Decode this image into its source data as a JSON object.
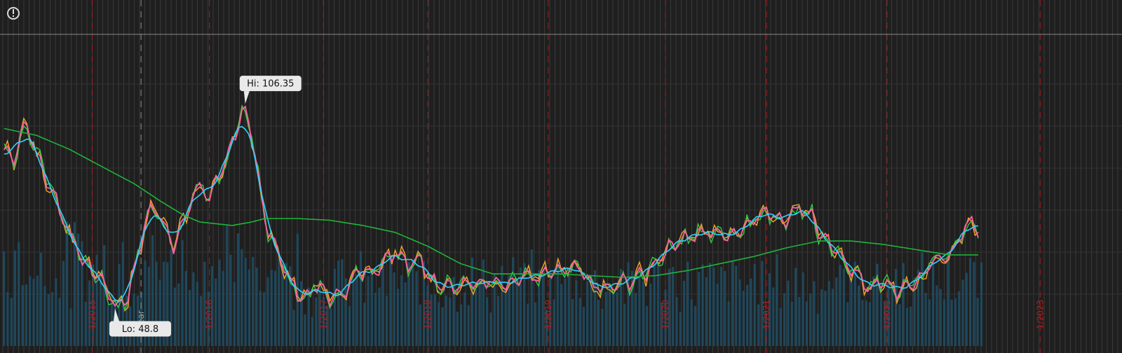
{
  "alert_icon": "exclamation-circle-icon",
  "colors": {
    "background": "#1f1f1f",
    "grid_vertical": "#3a3a3a",
    "grid_horizontal": "#333333",
    "separator_line": "#8a8a8a",
    "date_marker": "#b21e1e",
    "volume": "#1f4f66",
    "price_pink": "#ff5fa2",
    "price_orange": "#f5a623",
    "price_green": "#2ecc40",
    "fast_ma": "#2fd3ff",
    "slow_ma": "#1fb33a",
    "callout_bg": "#e9e9e9",
    "callout_text": "#111111"
  },
  "chart_data": {
    "type": "line",
    "ylim": [
      40,
      125
    ],
    "x_count": 300,
    "hi": {
      "label": "Hi: 106.35",
      "value": 106.35,
      "index": 74
    },
    "lo": {
      "label": "Lo: 48.8",
      "value": 48.8,
      "index": 34
    },
    "time_markers": [
      {
        "index": 27,
        "label": "1/2015",
        "style": "red"
      },
      {
        "index": 42,
        "label": "year",
        "style": "white"
      },
      {
        "index": 63,
        "label": "1/2016",
        "style": "red"
      },
      {
        "index": 98,
        "label": "1/2017",
        "style": "red"
      },
      {
        "index": 130,
        "label": "1/2018",
        "style": "red"
      },
      {
        "index": 167,
        "label": "1/2019",
        "style": "red"
      },
      {
        "index": 203,
        "label": "1/2020",
        "style": "red"
      },
      {
        "index": 234,
        "label": "1/2021",
        "style": "red"
      },
      {
        "index": 271,
        "label": "1/2022",
        "style": "red"
      },
      {
        "index": 318,
        "label": "1/2023",
        "style": "red"
      }
    ],
    "price_anchors": [
      [
        0,
        94
      ],
      [
        3,
        90
      ],
      [
        6,
        101
      ],
      [
        9,
        97
      ],
      [
        12,
        88
      ],
      [
        15,
        81
      ],
      [
        18,
        73
      ],
      [
        21,
        69
      ],
      [
        24,
        63
      ],
      [
        27,
        59
      ],
      [
        30,
        55
      ],
      [
        34,
        48.8
      ],
      [
        38,
        53
      ],
      [
        41,
        63
      ],
      [
        44,
        74
      ],
      [
        47,
        77
      ],
      [
        50,
        71
      ],
      [
        52,
        67
      ],
      [
        55,
        73
      ],
      [
        58,
        79
      ],
      [
        61,
        84
      ],
      [
        63,
        80
      ],
      [
        65,
        86
      ],
      [
        68,
        90
      ],
      [
        71,
        98
      ],
      [
        74,
        106.35
      ],
      [
        77,
        93
      ],
      [
        80,
        74
      ],
      [
        83,
        66
      ],
      [
        86,
        59
      ],
      [
        89,
        55
      ],
      [
        92,
        52
      ],
      [
        96,
        53
      ],
      [
        100,
        51
      ],
      [
        104,
        54
      ],
      [
        108,
        57
      ],
      [
        112,
        58
      ],
      [
        116,
        62
      ],
      [
        120,
        65
      ],
      [
        124,
        60
      ],
      [
        128,
        63
      ],
      [
        131,
        58
      ],
      [
        134,
        55
      ],
      [
        138,
        53
      ],
      [
        142,
        56
      ],
      [
        146,
        56
      ],
      [
        150,
        55
      ],
      [
        155,
        56
      ],
      [
        160,
        58
      ],
      [
        164,
        55
      ],
      [
        168,
        59
      ],
      [
        172,
        60
      ],
      [
        176,
        58
      ],
      [
        180,
        55
      ],
      [
        184,
        55
      ],
      [
        188,
        54
      ],
      [
        192,
        55
      ],
      [
        196,
        59
      ],
      [
        200,
        62
      ],
      [
        204,
        64
      ],
      [
        208,
        69
      ],
      [
        212,
        70
      ],
      [
        216,
        69
      ],
      [
        220,
        69
      ],
      [
        224,
        71
      ],
      [
        228,
        72
      ],
      [
        232,
        74
      ],
      [
        236,
        77
      ],
      [
        240,
        74
      ],
      [
        244,
        76
      ],
      [
        248,
        75
      ],
      [
        251,
        70
      ],
      [
        255,
        64
      ],
      [
        258,
        61
      ],
      [
        262,
        58
      ],
      [
        266,
        55
      ],
      [
        270,
        54
      ],
      [
        274,
        53
      ],
      [
        278,
        56
      ],
      [
        282,
        57
      ],
      [
        286,
        61
      ],
      [
        290,
        65
      ],
      [
        294,
        69
      ],
      [
        297,
        72
      ],
      [
        299,
        70
      ]
    ],
    "slow_ma_anchors": [
      [
        0,
        100
      ],
      [
        10,
        98
      ],
      [
        20,
        94
      ],
      [
        30,
        89
      ],
      [
        40,
        84
      ],
      [
        48,
        79
      ],
      [
        55,
        75
      ],
      [
        60,
        73
      ],
      [
        70,
        72
      ],
      [
        76,
        73
      ],
      [
        80,
        74
      ],
      [
        90,
        74
      ],
      [
        100,
        73.5
      ],
      [
        110,
        72
      ],
      [
        120,
        70
      ],
      [
        130,
        66
      ],
      [
        140,
        61
      ],
      [
        150,
        58
      ],
      [
        160,
        58
      ],
      [
        170,
        58
      ],
      [
        180,
        57.5
      ],
      [
        190,
        57
      ],
      [
        200,
        57.5
      ],
      [
        210,
        59
      ],
      [
        220,
        61
      ],
      [
        230,
        63
      ],
      [
        240,
        65.5
      ],
      [
        250,
        67.5
      ],
      [
        260,
        67.5
      ],
      [
        270,
        66.5
      ],
      [
        280,
        65
      ],
      [
        290,
        63.5
      ],
      [
        299,
        63.5
      ]
    ]
  }
}
